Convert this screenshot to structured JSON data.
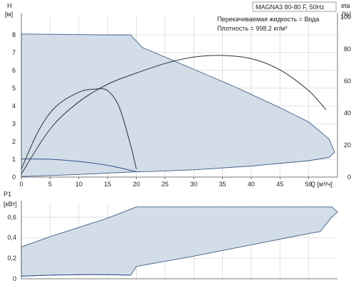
{
  "header": {
    "model": "MAGNA3 80-80 F, 50Hz",
    "liquid": "Перекачиваемая жидкость = Вода",
    "density": "Плотность = 998.2 кг/м³"
  },
  "chart_data": [
    {
      "type": "line",
      "name": "head-efficiency",
      "ylabel": "H",
      "yunit": "[м]",
      "y2label": "eta",
      "y2unit": "[%]",
      "xlabel": "Q [м³/ч]",
      "xlim": [
        0,
        55
      ],
      "ylim": [
        0,
        9
      ],
      "y2lim": [
        0,
        100
      ],
      "xticks": [
        0,
        5,
        10,
        15,
        20,
        25,
        30,
        35,
        40,
        45,
        50
      ],
      "yticks": [
        0,
        1,
        2,
        3,
        4,
        5,
        6,
        7,
        8
      ],
      "y2ticks": [
        0,
        20,
        40,
        60,
        80,
        100
      ],
      "grid": true,
      "envelope": {
        "x": [
          0,
          7,
          14,
          19,
          21,
          29,
          37,
          45,
          50,
          53.5,
          54.5,
          53.5,
          50,
          40,
          30,
          22,
          20,
          10,
          0
        ],
        "y": [
          8.05,
          8.03,
          8.0,
          8.0,
          7.3,
          6.2,
          5.1,
          3.9,
          3.1,
          2.15,
          1.4,
          1.1,
          0.92,
          0.62,
          0.41,
          0.31,
          0.3,
          0.15,
          0.03
        ]
      },
      "series": [
        {
          "role": "envelope-low-speed",
          "x": [
            0,
            5,
            10,
            15,
            19,
            20
          ],
          "y": [
            1.02,
            1.0,
            0.88,
            0.66,
            0.38,
            0.3
          ]
        },
        {
          "role": "efficiency-max-speed",
          "axis": "y2",
          "x": [
            0,
            5,
            10,
            15,
            20,
            25,
            30,
            35,
            40,
            45,
            50,
            53
          ],
          "y": [
            2,
            30,
            47,
            58,
            65,
            71,
            75,
            76,
            74,
            67,
            54,
            42
          ]
        },
        {
          "role": "efficiency-low-speed",
          "axis": "y2",
          "x": [
            0,
            3,
            6,
            10,
            13,
            15,
            17,
            19,
            20
          ],
          "y": [
            5,
            29,
            44,
            53,
            55,
            54,
            44,
            20,
            5
          ]
        }
      ]
    },
    {
      "type": "line",
      "name": "power",
      "ylabel": "P1",
      "yunit": "[кВт]",
      "xlim": [
        0,
        55
      ],
      "ylim": [
        0,
        0.72
      ],
      "yticks": [
        0,
        0.2,
        0.4,
        0.6
      ],
      "ytick_labels": [
        "0",
        "0,2",
        "0,4",
        "0,6"
      ],
      "grid": true,
      "envelope": {
        "x": [
          0,
          5,
          10,
          15,
          20,
          30,
          40,
          50,
          54,
          55,
          54,
          52,
          50,
          40,
          30,
          20,
          19,
          15,
          10,
          5,
          0
        ],
        "y": [
          0.31,
          0.41,
          0.5,
          0.59,
          0.7,
          0.7,
          0.7,
          0.7,
          0.7,
          0.65,
          0.6,
          0.46,
          0.44,
          0.33,
          0.22,
          0.12,
          0.035,
          0.04,
          0.04,
          0.035,
          0.025
        ]
      },
      "series": [
        {
          "role": "envelope-low-speed",
          "x": [
            0,
            5,
            10,
            15,
            19
          ],
          "y": [
            0.025,
            0.035,
            0.04,
            0.04,
            0.035
          ]
        }
      ]
    }
  ]
}
